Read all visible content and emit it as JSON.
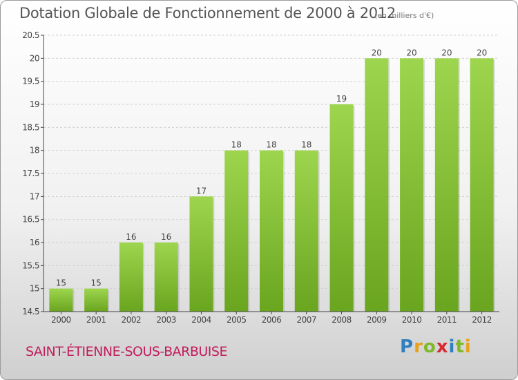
{
  "title": "Dotation Globale de Fonctionnement de 2000 à 2012",
  "unit_note": "(en milliers d'€)",
  "commune": "SAINT-ÉTIENNE-SOUS-BARBUISE",
  "logo": {
    "text": "Proxiti",
    "letter_colors": [
      "#2f7fc1",
      "#e8a21a",
      "#7fb829",
      "#d9282f",
      "#2f7fc1",
      "#7fb829",
      "#e8a21a"
    ]
  },
  "colors": {
    "bar_light": "#9ed54e",
    "bar_dark": "#6aa51f",
    "grid": "#d0d0d0",
    "axis": "#444444",
    "label": "#444444"
  },
  "chart_data": {
    "type": "bar",
    "title": "Dotation Globale de Fonctionnement de 2000 à 2012",
    "categories": [
      "2000",
      "2001",
      "2002",
      "2003",
      "2004",
      "2005",
      "2006",
      "2007",
      "2008",
      "2009",
      "2010",
      "2011",
      "2012"
    ],
    "values": [
      15,
      15,
      16,
      16,
      17,
      18,
      18,
      18,
      19,
      20,
      20,
      20,
      20
    ],
    "value_labels": [
      "15",
      "15",
      "16",
      "16",
      "17",
      "18",
      "18",
      "18",
      "19",
      "20",
      "20",
      "20",
      "20"
    ],
    "xlabel": "",
    "ylabel": "",
    "ylim": [
      14.5,
      20.5
    ],
    "yticks": [
      14.5,
      15,
      15.5,
      16,
      16.5,
      17,
      17.5,
      18,
      18.5,
      19,
      19.5,
      20,
      20.5
    ],
    "ytick_labels": [
      "14.5",
      "15",
      "15.5",
      "16",
      "16.5",
      "17",
      "17.5",
      "18",
      "18.5",
      "19",
      "19.5",
      "20",
      "20.5"
    ],
    "grid": true,
    "legend": "none"
  }
}
